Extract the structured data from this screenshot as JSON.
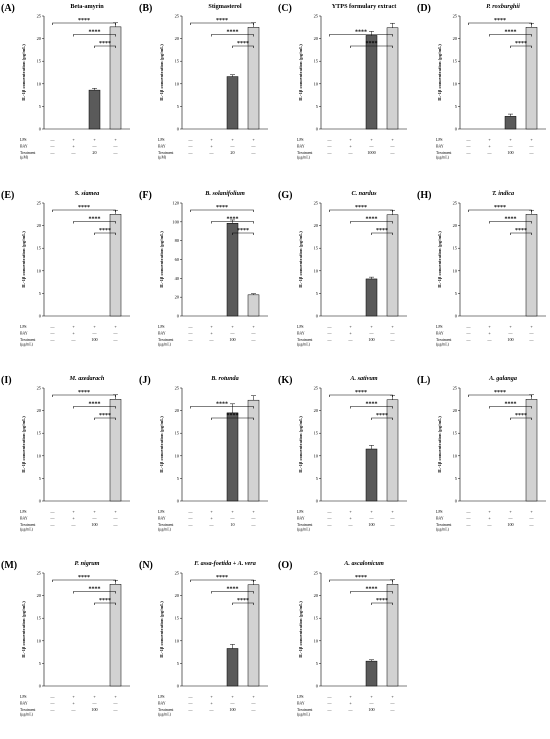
{
  "chart_data": [
    {
      "panel": "(A)",
      "title": "Beta-amyrin",
      "italic": false,
      "type": "bar",
      "ylim": [
        0,
        25
      ],
      "yticks": [
        0,
        5,
        10,
        15,
        20,
        25
      ],
      "ylabel": "IL-1β concentration (pg/mL)",
      "values": [
        0,
        0,
        8.6,
        22.6
      ],
      "errors": [
        0,
        0,
        0.4,
        0.9
      ],
      "rows": [
        {
          "label": "LPS",
          "cells": [
            "—",
            "+",
            "+",
            "+"
          ]
        },
        {
          "label": "BAY",
          "cells": [
            "—",
            "+",
            "—",
            "—"
          ]
        },
        {
          "label": "Treatment (µM)",
          "cells": [
            "—",
            "—",
            "20",
            "—"
          ]
        }
      ],
      "sig": [
        {
          "from": 0,
          "to": 3,
          "label": "****"
        },
        {
          "from": 1,
          "to": 3,
          "label": "****"
        },
        {
          "from": 2,
          "to": 3,
          "label": "****"
        }
      ]
    },
    {
      "panel": "(B)",
      "title": "Stigmasterol",
      "italic": false,
      "type": "bar",
      "ylim": [
        0,
        25
      ],
      "yticks": [
        0,
        5,
        10,
        15,
        20,
        25
      ],
      "ylabel": "IL-1β concentration (pg/mL)",
      "values": [
        0,
        0,
        11.6,
        22.5
      ],
      "errors": [
        0,
        0,
        0.4,
        1.0
      ],
      "rows": [
        {
          "label": "LPS",
          "cells": [
            "—",
            "+",
            "+",
            "+"
          ]
        },
        {
          "label": "BAY",
          "cells": [
            "—",
            "+",
            "—",
            "—"
          ]
        },
        {
          "label": "Treatment (µM)",
          "cells": [
            "—",
            "—",
            "20",
            "—"
          ]
        }
      ],
      "sig": [
        {
          "from": 0,
          "to": 3,
          "label": "****"
        },
        {
          "from": 1,
          "to": 3,
          "label": "****"
        },
        {
          "from": 2,
          "to": 3,
          "label": "****"
        }
      ]
    },
    {
      "panel": "(C)",
      "title": "YTPS formulary extract",
      "italic": false,
      "type": "bar",
      "ylim": [
        0,
        25
      ],
      "yticks": [
        0,
        5,
        10,
        15,
        20,
        25
      ],
      "ylabel": "IL-1β concentration (pg/mL)",
      "values": [
        0,
        0,
        20.7,
        22.4
      ],
      "errors": [
        0,
        0,
        0.9,
        1.0
      ],
      "rows": [
        {
          "label": "LPS",
          "cells": [
            "—",
            "+",
            "+",
            "+"
          ]
        },
        {
          "label": "BAY",
          "cells": [
            "—",
            "+",
            "—",
            "—"
          ]
        },
        {
          "label": "Treatment (µg/mL)",
          "cells": [
            "—",
            "—",
            "1000",
            "—"
          ]
        }
      ],
      "sig": [
        {
          "from": 0,
          "to": 3,
          "label": "****"
        },
        {
          "from": 1,
          "to": 3,
          "label": "****"
        }
      ]
    },
    {
      "panel": "(D)",
      "title": "P. roxburghii",
      "italic": true,
      "type": "bar",
      "ylim": [
        0,
        25
      ],
      "yticks": [
        0,
        5,
        10,
        15,
        20,
        25
      ],
      "ylabel": "IL-1β concentration (pg/mL)",
      "values": [
        0,
        0,
        2.8,
        22.5
      ],
      "errors": [
        0,
        0,
        0.5,
        0.9
      ],
      "rows": [
        {
          "label": "LPS",
          "cells": [
            "—",
            "+",
            "+",
            "+"
          ]
        },
        {
          "label": "BAY",
          "cells": [
            "—",
            "+",
            "—",
            "—"
          ]
        },
        {
          "label": "Treatment (µg/mL)",
          "cells": [
            "—",
            "—",
            "100",
            "—"
          ]
        }
      ],
      "sig": [
        {
          "from": 0,
          "to": 3,
          "label": "****"
        },
        {
          "from": 1,
          "to": 3,
          "label": "****"
        },
        {
          "from": 2,
          "to": 3,
          "label": "****"
        }
      ]
    },
    {
      "panel": "(E)",
      "title": "S. siamea",
      "italic": true,
      "type": "bar",
      "ylim": [
        0,
        25
      ],
      "yticks": [
        0,
        5,
        10,
        15,
        20,
        25
      ],
      "ylabel": "IL-1β concentration (pg/mL)",
      "values": [
        0,
        0,
        0,
        22.5
      ],
      "errors": [
        0,
        0,
        0,
        0.9
      ],
      "rows": [
        {
          "label": "LPS",
          "cells": [
            "—",
            "+",
            "+",
            "+"
          ]
        },
        {
          "label": "BAY",
          "cells": [
            "—",
            "+",
            "—",
            "—"
          ]
        },
        {
          "label": "Treatment (µg/mL)",
          "cells": [
            "—",
            "—",
            "100",
            "—"
          ]
        }
      ],
      "sig": [
        {
          "from": 0,
          "to": 3,
          "label": "****"
        },
        {
          "from": 1,
          "to": 3,
          "label": "****"
        },
        {
          "from": 2,
          "to": 3,
          "label": "****"
        }
      ]
    },
    {
      "panel": "(F)",
      "title": "B. solanifolium",
      "italic": true,
      "type": "bar",
      "ylim": [
        0,
        120
      ],
      "yticks": [
        0,
        20,
        40,
        60,
        80,
        100,
        120
      ],
      "ylabel": "IL-1β concentration (pg/mL)",
      "values": [
        0,
        0,
        98.5,
        22.5
      ],
      "errors": [
        0,
        0,
        3.5,
        1.2
      ],
      "rows": [
        {
          "label": "LPS",
          "cells": [
            "—",
            "+",
            "+",
            "+"
          ]
        },
        {
          "label": "BAY",
          "cells": [
            "—",
            "+",
            "—",
            "—"
          ]
        },
        {
          "label": "Treatment (µg/mL)",
          "cells": [
            "—",
            "—",
            "100",
            "—"
          ]
        }
      ],
      "sig": [
        {
          "from": 0,
          "to": 3,
          "label": "****"
        },
        {
          "from": 1,
          "to": 3,
          "label": "****"
        },
        {
          "from": 2,
          "to": 3,
          "label": "****"
        }
      ]
    },
    {
      "panel": "(G)",
      "title": "C. nardus",
      "italic": true,
      "type": "bar",
      "ylim": [
        0,
        25
      ],
      "yticks": [
        0,
        5,
        10,
        15,
        20,
        25
      ],
      "ylabel": "IL-1β concentration (pg/mL)",
      "values": [
        0,
        0,
        8.2,
        22.4
      ],
      "errors": [
        0,
        0,
        0.4,
        1.0
      ],
      "rows": [
        {
          "label": "LPS",
          "cells": [
            "—",
            "+",
            "+",
            "+"
          ]
        },
        {
          "label": "BAY",
          "cells": [
            "—",
            "+",
            "—",
            "—"
          ]
        },
        {
          "label": "Treatment (µg/mL)",
          "cells": [
            "—",
            "—",
            "100",
            "—"
          ]
        }
      ],
      "sig": [
        {
          "from": 0,
          "to": 3,
          "label": "****"
        },
        {
          "from": 1,
          "to": 3,
          "label": "****"
        },
        {
          "from": 2,
          "to": 3,
          "label": "****"
        }
      ]
    },
    {
      "panel": "(H)",
      "title": "T. indica",
      "italic": true,
      "type": "bar",
      "ylim": [
        0,
        25
      ],
      "yticks": [
        0,
        5,
        10,
        15,
        20,
        25
      ],
      "ylabel": "IL-1β concentration (pg/mL)",
      "values": [
        0,
        0,
        0,
        22.5
      ],
      "errors": [
        0,
        0,
        0,
        0.9
      ],
      "rows": [
        {
          "label": "LPS",
          "cells": [
            "—",
            "+",
            "+",
            "+"
          ]
        },
        {
          "label": "BAY",
          "cells": [
            "—",
            "+",
            "—",
            "—"
          ]
        },
        {
          "label": "Treatment (µg/mL)",
          "cells": [
            "—",
            "—",
            "100",
            "—"
          ]
        }
      ],
      "sig": [
        {
          "from": 0,
          "to": 3,
          "label": "****"
        },
        {
          "from": 1,
          "to": 3,
          "label": "****"
        },
        {
          "from": 2,
          "to": 3,
          "label": "****"
        }
      ]
    },
    {
      "panel": "(I)",
      "title": "M. azedarach",
      "italic": true,
      "type": "bar",
      "ylim": [
        0,
        25
      ],
      "yticks": [
        0,
        5,
        10,
        15,
        20,
        25
      ],
      "ylabel": "IL-1β concentration (pg/mL)",
      "values": [
        0,
        0,
        0,
        22.5
      ],
      "errors": [
        0,
        0,
        0,
        1.0
      ],
      "rows": [
        {
          "label": "LPS",
          "cells": [
            "—",
            "+",
            "+",
            "+"
          ]
        },
        {
          "label": "BAY",
          "cells": [
            "—",
            "+",
            "—",
            "—"
          ]
        },
        {
          "label": "Treatment (µg/mL)",
          "cells": [
            "—",
            "—",
            "100",
            "—"
          ]
        }
      ],
      "sig": [
        {
          "from": 0,
          "to": 3,
          "label": "****"
        },
        {
          "from": 1,
          "to": 3,
          "label": "****"
        },
        {
          "from": 2,
          "to": 3,
          "label": "****"
        }
      ]
    },
    {
      "panel": "(J)",
      "title": "B. rotunda",
      "italic": true,
      "type": "bar",
      "ylim": [
        0,
        25
      ],
      "yticks": [
        0,
        5,
        10,
        15,
        20,
        25
      ],
      "ylabel": "IL-1β concentration (pg/mL)",
      "values": [
        0,
        0,
        19.5,
        22.3
      ],
      "errors": [
        0,
        0,
        2.0,
        1.0
      ],
      "rows": [
        {
          "label": "LPS",
          "cells": [
            "—",
            "+",
            "+",
            "+"
          ]
        },
        {
          "label": "BAY",
          "cells": [
            "—",
            "+",
            "—",
            "—"
          ]
        },
        {
          "label": "Treatment (µg/mL)",
          "cells": [
            "—",
            "—",
            "10",
            "—"
          ]
        }
      ],
      "sig": [
        {
          "from": 0,
          "to": 3,
          "label": "****"
        },
        {
          "from": 1,
          "to": 3,
          "label": "****"
        }
      ]
    },
    {
      "panel": "(K)",
      "title": "A. sativum",
      "italic": true,
      "type": "bar",
      "ylim": [
        0,
        25
      ],
      "yticks": [
        0,
        5,
        10,
        15,
        20,
        25
      ],
      "ylabel": "IL-1β concentration (pg/mL)",
      "values": [
        0,
        0,
        11.5,
        22.4
      ],
      "errors": [
        0,
        0,
        0.8,
        1.0
      ],
      "rows": [
        {
          "label": "LPS",
          "cells": [
            "—",
            "+",
            "+",
            "+"
          ]
        },
        {
          "label": "BAY",
          "cells": [
            "—",
            "+",
            "—",
            "—"
          ]
        },
        {
          "label": "Treatment (µg/mL)",
          "cells": [
            "—",
            "—",
            "100",
            "—"
          ]
        }
      ],
      "sig": [
        {
          "from": 0,
          "to": 3,
          "label": "****"
        },
        {
          "from": 1,
          "to": 3,
          "label": "****"
        },
        {
          "from": 2,
          "to": 3,
          "label": "****"
        }
      ]
    },
    {
      "panel": "(L)",
      "title": "A. galanga",
      "italic": true,
      "type": "bar",
      "ylim": [
        0,
        25
      ],
      "yticks": [
        0,
        5,
        10,
        15,
        20,
        25
      ],
      "ylabel": "IL-1β concentration (pg/mL)",
      "values": [
        0,
        0,
        0,
        22.5
      ],
      "errors": [
        0,
        0,
        0,
        1.0
      ],
      "rows": [
        {
          "label": "LPS",
          "cells": [
            "—",
            "+",
            "+",
            "+"
          ]
        },
        {
          "label": "BAY",
          "cells": [
            "—",
            "+",
            "—",
            "—"
          ]
        },
        {
          "label": "Treatment (µg/mL)",
          "cells": [
            "—",
            "—",
            "100",
            "—"
          ]
        }
      ],
      "sig": [
        {
          "from": 0,
          "to": 3,
          "label": "****"
        },
        {
          "from": 1,
          "to": 3,
          "label": "****"
        },
        {
          "from": 2,
          "to": 3,
          "label": "****"
        }
      ]
    },
    {
      "panel": "(M)",
      "title": "P. nigrum",
      "italic": true,
      "type": "bar",
      "ylim": [
        0,
        25
      ],
      "yticks": [
        0,
        5,
        10,
        15,
        20,
        25
      ],
      "ylabel": "IL-1β concentration (pg/mL)",
      "values": [
        0,
        0,
        0,
        22.5
      ],
      "errors": [
        0,
        0,
        0,
        0.9
      ],
      "rows": [
        {
          "label": "LPS",
          "cells": [
            "—",
            "+",
            "+",
            "+"
          ]
        },
        {
          "label": "BAY",
          "cells": [
            "—",
            "+",
            "—",
            "—"
          ]
        },
        {
          "label": "Treatment (µg/mL)",
          "cells": [
            "—",
            "—",
            "100",
            "—"
          ]
        }
      ],
      "sig": [
        {
          "from": 0,
          "to": 3,
          "label": "****"
        },
        {
          "from": 1,
          "to": 3,
          "label": "****"
        },
        {
          "from": 2,
          "to": 3,
          "label": "****"
        }
      ]
    },
    {
      "panel": "(N)",
      "title": "F. assa-foetida + A. vera",
      "italic": true,
      "type": "bar",
      "ylim": [
        0,
        25
      ],
      "yticks": [
        0,
        5,
        10,
        15,
        20,
        25
      ],
      "ylabel": "IL-1β concentration (pg/mL)",
      "values": [
        0,
        0,
        8.3,
        22.4
      ],
      "errors": [
        0,
        0,
        0.9,
        1.0
      ],
      "rows": [
        {
          "label": "LPS",
          "cells": [
            "—",
            "+",
            "+",
            "+"
          ]
        },
        {
          "label": "BAY",
          "cells": [
            "—",
            "+",
            "—",
            "—"
          ]
        },
        {
          "label": "Treatment (µg/mL)",
          "cells": [
            "—",
            "—",
            "100",
            "—"
          ]
        }
      ],
      "sig": [
        {
          "from": 0,
          "to": 3,
          "label": "****"
        },
        {
          "from": 1,
          "to": 3,
          "label": "****"
        },
        {
          "from": 2,
          "to": 3,
          "label": "****"
        }
      ]
    },
    {
      "panel": "(O)",
      "title": "A. ascalonicum",
      "italic": true,
      "type": "bar",
      "ylim": [
        0,
        25
      ],
      "yticks": [
        0,
        5,
        10,
        15,
        20,
        25
      ],
      "ylabel": "IL-1β concentration (pg/mL)",
      "values": [
        0,
        0,
        5.5,
        22.5
      ],
      "errors": [
        0,
        0,
        0.3,
        1.0
      ],
      "rows": [
        {
          "label": "LPS",
          "cells": [
            "—",
            "+",
            "+",
            "+"
          ]
        },
        {
          "label": "BAY",
          "cells": [
            "—",
            "+",
            "—",
            "—"
          ]
        },
        {
          "label": "Treatment (µg/mL)",
          "cells": [
            "—",
            "—",
            "100",
            "—"
          ]
        }
      ],
      "sig": [
        {
          "from": 0,
          "to": 3,
          "label": "****"
        },
        {
          "from": 1,
          "to": 3,
          "label": "****"
        },
        {
          "from": 2,
          "to": 3,
          "label": "****"
        }
      ]
    }
  ],
  "colors": {
    "treatment_bar": "#5a5a5a",
    "lps_bar": "#d2d2d2",
    "stroke": "#000000"
  }
}
